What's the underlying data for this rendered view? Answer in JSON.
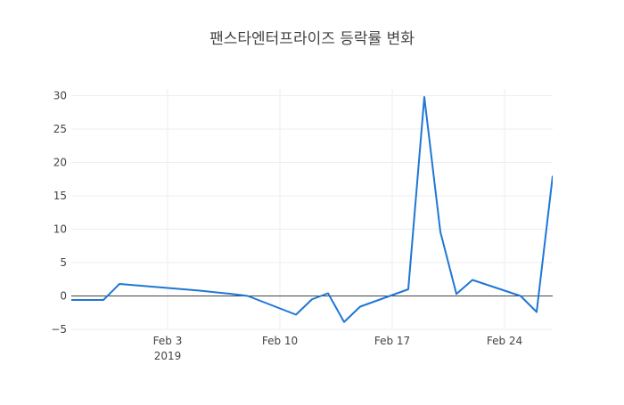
{
  "chart_data": {
    "type": "line",
    "title": "팬스타엔터프라이즈 등락률 변화",
    "xlabel": "",
    "ylabel": "",
    "x_axis": {
      "type": "date",
      "range": [
        "2019-01-28",
        "2019-02-26"
      ],
      "ticks": [
        {
          "date": "2019-02-03",
          "label": "Feb 3",
          "sublabel": "2019"
        },
        {
          "date": "2019-02-10",
          "label": "Feb 10",
          "sublabel": ""
        },
        {
          "date": "2019-02-17",
          "label": "Feb 17",
          "sublabel": ""
        },
        {
          "date": "2019-02-24",
          "label": "Feb 24",
          "sublabel": ""
        }
      ]
    },
    "y_axis": {
      "range": [
        -5,
        31
      ],
      "ticks": [
        -5,
        0,
        5,
        10,
        15,
        20,
        25,
        30
      ],
      "tick_labels": [
        "−5",
        "0",
        "5",
        "10",
        "15",
        "20",
        "25",
        "30"
      ],
      "grid": true,
      "zero_line": true
    },
    "line_color": "#1f77d4",
    "series": [
      {
        "x": [
          "2019-01-28",
          "2019-01-30",
          "2019-01-31",
          "2019-02-05",
          "2019-02-07",
          "2019-02-08",
          "2019-02-11",
          "2019-02-12",
          "2019-02-13",
          "2019-02-14",
          "2019-02-15",
          "2019-02-18",
          "2019-02-19",
          "2019-02-20",
          "2019-02-21",
          "2019-02-22",
          "2019-02-25",
          "2019-02-26",
          "2019-02-27"
        ],
        "y": [
          -0.6,
          -0.6,
          1.8,
          0.8,
          0.3,
          0.0,
          -2.8,
          -0.5,
          0.4,
          -3.9,
          -1.6,
          1.0,
          29.8,
          9.6,
          0.3,
          2.4,
          0.0,
          -2.4,
          18.0
        ]
      }
    ]
  }
}
